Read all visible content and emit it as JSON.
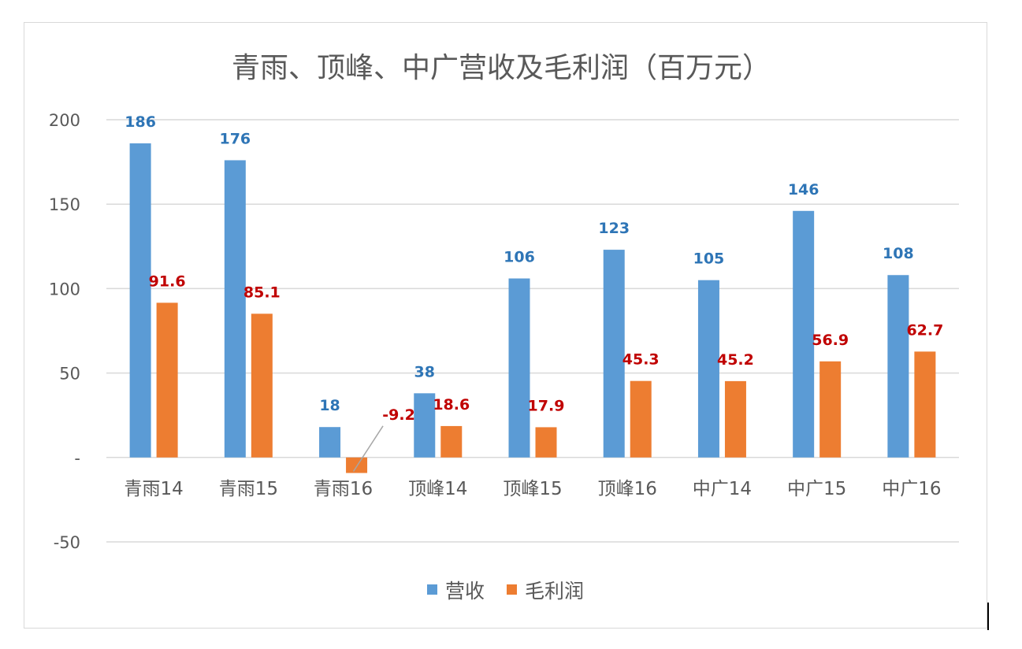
{
  "chart_data": {
    "type": "bar",
    "title": "青雨、顶峰、中广营收及毛利润（百万元）",
    "xlabel": "",
    "ylabel": "",
    "ylim": [
      -50,
      200
    ],
    "yticks": [
      200,
      150,
      100,
      50,
      0,
      -50
    ],
    "ytick_labels": [
      "200",
      "150",
      "100",
      "50",
      "-",
      "-50"
    ],
    "grid": true,
    "legend_position": "bottom",
    "categories": [
      "青雨14",
      "青雨15",
      "青雨16",
      "顶峰14",
      "顶峰15",
      "顶峰16",
      "中广14",
      "中广15",
      "中广16"
    ],
    "series": [
      {
        "name": "营收",
        "color": "#5B9BD5",
        "label_color": "#2E75B6",
        "values": [
          186,
          176,
          18,
          38,
          106,
          123,
          105,
          146,
          108
        ],
        "labels": [
          "186",
          "176",
          "18",
          "38",
          "106",
          "123",
          "105",
          "146",
          "108"
        ]
      },
      {
        "name": "毛利润",
        "color": "#ED7D31",
        "label_color": "#C00000",
        "values": [
          91.6,
          85.1,
          -9.2,
          18.6,
          17.9,
          45.3,
          45.2,
          56.9,
          62.7
        ],
        "labels": [
          "91.6",
          "85.1",
          "-9.2",
          "18.6",
          "17.9",
          "45.3",
          "45.2",
          "56.9",
          "62.7"
        ]
      }
    ]
  }
}
